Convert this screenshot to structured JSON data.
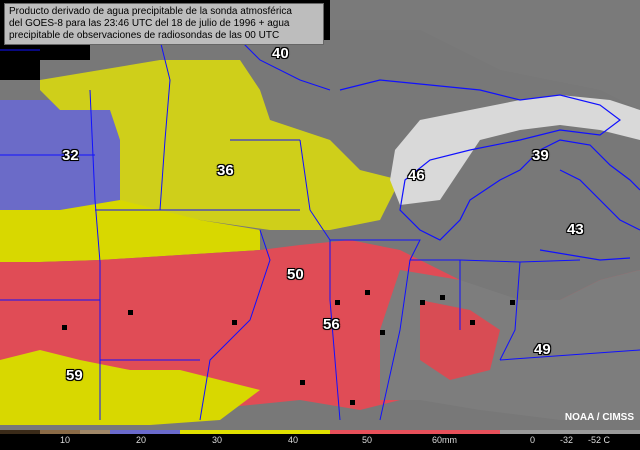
{
  "caption": {
    "line1": "Producto derivado de agua precipitable de la sonda atmosférica",
    "line2": "del GOES-8 para las 23:46 UTC del 18 de julio de 1996 + agua",
    "line3": "precipitable de observaciones de radiosondas de las 00 UTC"
  },
  "observations": [
    {
      "id": "obs-40",
      "value": "40"
    },
    {
      "id": "obs-32",
      "value": "32"
    },
    {
      "id": "obs-36",
      "value": "36"
    },
    {
      "id": "obs-46",
      "value": "46"
    },
    {
      "id": "obs-39",
      "value": "39"
    },
    {
      "id": "obs-43",
      "value": "43"
    },
    {
      "id": "obs-50",
      "value": "50"
    },
    {
      "id": "obs-56",
      "value": "56"
    },
    {
      "id": "obs-49",
      "value": "49"
    },
    {
      "id": "obs-59",
      "value": "59"
    }
  ],
  "credit": "NOAA / CIMSS",
  "colorbar": {
    "labels": [
      "10",
      "20",
      "30",
      "40",
      "50",
      "60mm",
      "0",
      "-32",
      "-52 C"
    ],
    "colors": {
      "brown": "#8a6a45",
      "blue": "#6a6acc",
      "yellow": "#e0e000",
      "red": "#e8505a",
      "gray": "#808080",
      "white": "#e8e8e8",
      "border": "#1010ff"
    }
  }
}
